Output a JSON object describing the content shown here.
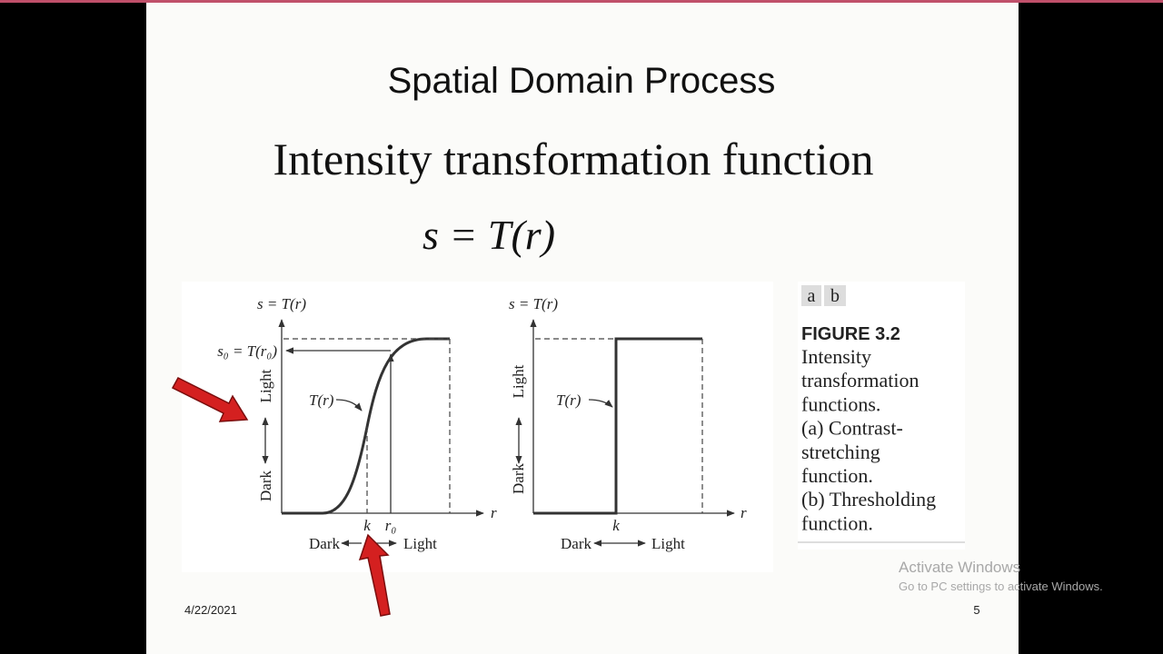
{
  "slide": {
    "title": "Spatial Domain Process",
    "subtitle": "Intensity transformation function",
    "formula": "s = T(r)",
    "figure": {
      "left": {
        "y_axis": "s = T(r)",
        "s0_label": "s₀ = T(r₀)",
        "light": "Light",
        "dark": "Dark",
        "curve_label": "T(r)",
        "k": "k",
        "r0": "r₀",
        "r": "r",
        "x_dark": "Dark",
        "x_light": "Light"
      },
      "right": {
        "y_axis": "s = T(r)",
        "light": "Light",
        "dark": "Dark",
        "curve_label": "T(r)",
        "k": "k",
        "r": "r",
        "x_dark": "Dark",
        "x_light": "Light"
      }
    },
    "caption": {
      "tag_a": "a",
      "tag_b": "b",
      "label": "FIGURE 3.2",
      "lines": [
        "Intensity",
        "transformation",
        "functions.",
        "(a) Contrast-",
        "stretching",
        "function.",
        "(b) Thresholding",
        "function."
      ]
    },
    "footer": {
      "date": "4/22/2021",
      "page": "5"
    }
  },
  "watermark": {
    "title": "Activate Windows",
    "subtitle": "Go to PC settings to activate Windows."
  }
}
